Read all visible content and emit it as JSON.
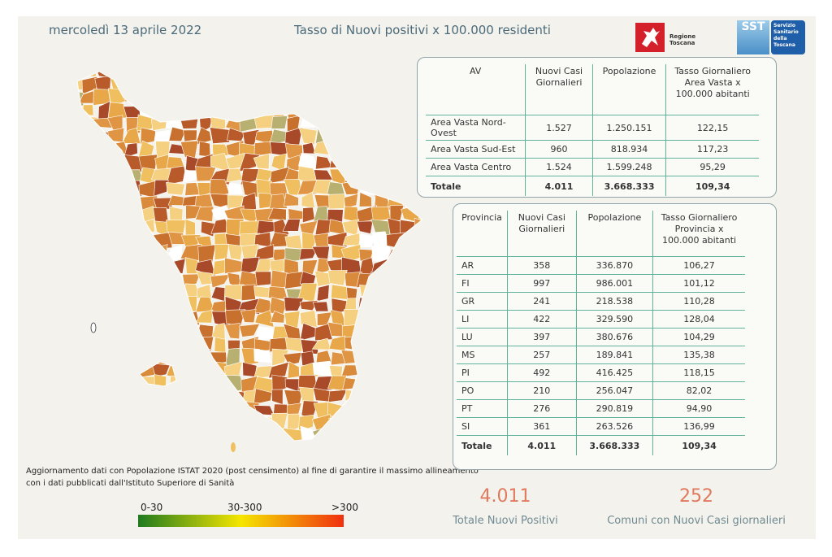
{
  "header": {
    "date": "mercoledì 13 aprile 2022",
    "title": "Tasso di Nuovi positivi x 100.000 residenti"
  },
  "logos": {
    "regione": "Regione Toscana",
    "sst": "SST",
    "sst_full": "Servizio Sanitario della Toscana"
  },
  "av_table": {
    "columns": [
      "AV",
      "Nuovi Casi Giornalieri",
      "Popolazione",
      "Tasso Giornaliero Area Vasta x 100.000 abitanti"
    ],
    "rows": [
      [
        "Area Vasta Nord-Ovest",
        "1.527",
        "1.250.151",
        "122,15"
      ],
      [
        "Area Vasta Sud-Est",
        "960",
        "818.934",
        "117,23"
      ],
      [
        "Area Vasta Centro",
        "1.524",
        "1.599.248",
        "95,29"
      ]
    ],
    "total": [
      "Totale",
      "4.011",
      "3.668.333",
      "109,34"
    ]
  },
  "prov_table": {
    "columns": [
      "Provincia",
      "Nuovi Casi Giornalieri",
      "Popolazione",
      "Tasso Giornaliero Provincia x 100.000 abitanti"
    ],
    "rows": [
      [
        "AR",
        "358",
        "336.870",
        "106,27"
      ],
      [
        "FI",
        "997",
        "986.001",
        "101,12"
      ],
      [
        "GR",
        "241",
        "218.538",
        "110,28"
      ],
      [
        "LI",
        "422",
        "329.590",
        "128,04"
      ],
      [
        "LU",
        "397",
        "380.676",
        "104,29"
      ],
      [
        "MS",
        "257",
        "189.841",
        "135,38"
      ],
      [
        "PI",
        "492",
        "416.425",
        "118,15"
      ],
      [
        "PO",
        "210",
        "256.047",
        "82,02"
      ],
      [
        "PT",
        "276",
        "290.819",
        "94,90"
      ],
      [
        "SI",
        "361",
        "263.526",
        "136,99"
      ]
    ],
    "total": [
      "Totale",
      "4.011",
      "3.668.333",
      "109,34"
    ]
  },
  "kpi": {
    "total_value": "4.011",
    "total_label": "Totale Nuovi Positivi",
    "comuni_value": "252",
    "comuni_label": "Comuni con Nuovi Casi giornalieri"
  },
  "footnote": [
    "Aggiornamento dati con Popolazione ISTAT 2020 (post censimento) al fine di garantire il massimo allineamento",
    "con i dati pubblicati dall'Istituto Superiore di Sanità"
  ],
  "legend": {
    "labels": [
      "0-30",
      "30-300",
      ">300"
    ],
    "colors": [
      "#1f7a1f",
      "#f5e600",
      "#f03010"
    ]
  },
  "map_colors": [
    "#e8a84a",
    "#d98a3a",
    "#c8702e",
    "#f0c060",
    "#b85a2a",
    "#e09545",
    "#a84a2a",
    "#f5d080"
  ]
}
